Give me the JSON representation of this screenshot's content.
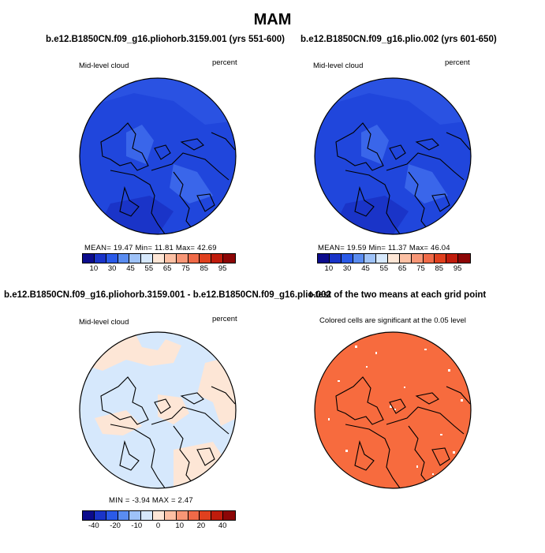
{
  "title": "MAM",
  "panels": [
    {
      "id": "p1",
      "title": "b.e12.B1850CN.f09_g16.pliohorb.3159.001 (yrs 551-600)",
      "left_label": "Mid-level cloud",
      "right_label": "percent",
      "stats": "MEAN=   19.47   Min=    11.81   Max=    42.69",
      "colorbar": {
        "colors": [
          "#0c0c8c",
          "#1a34c8",
          "#2a5ae8",
          "#5a8cf0",
          "#9ec2f8",
          "#d6e8fc",
          "#fde6d6",
          "#fcc0a4",
          "#f79676",
          "#f06a48",
          "#e0401e",
          "#c01c0c",
          "#8c0606"
        ],
        "ticks": [
          "10",
          "30",
          "45",
          "55",
          "65",
          "75",
          "85",
          "95"
        ]
      }
    },
    {
      "id": "p2",
      "title": "b.e12.B1850CN.f09_g16.plio.002 (yrs 601-650)",
      "left_label": "Mid-level cloud",
      "right_label": "percent",
      "stats": "MEAN=   19.59   Min=    11.37   Max=    46.04",
      "colorbar": {
        "colors": [
          "#0c0c8c",
          "#1a34c8",
          "#2a5ae8",
          "#5a8cf0",
          "#9ec2f8",
          "#d6e8fc",
          "#fde6d6",
          "#fcc0a4",
          "#f79676",
          "#f06a48",
          "#e0401e",
          "#c01c0c",
          "#8c0606"
        ],
        "ticks": [
          "10",
          "30",
          "45",
          "55",
          "65",
          "75",
          "85",
          "95"
        ]
      }
    },
    {
      "id": "p3",
      "title": "b.e12.B1850CN.f09_g16.pliohorb.3159.001 - b.e12.B1850CN.f09_g16.plio.002",
      "left_label": "Mid-level cloud",
      "right_label": "percent",
      "stats": "MIN =   -3.94  MAX =    2.47",
      "colorbar": {
        "colors": [
          "#0c0c8c",
          "#1a34c8",
          "#2a5ae8",
          "#5a8cf0",
          "#9ec2f8",
          "#d6e8fc",
          "#fde6d6",
          "#fcc0a4",
          "#f79676",
          "#f06a48",
          "#e0401e",
          "#c01c0c",
          "#8c0606"
        ],
        "ticks": [
          "-40",
          "-20",
          "-10",
          "0",
          "10",
          "20",
          "40"
        ]
      }
    },
    {
      "id": "p4",
      "title": "t-test of the two means at each grid point",
      "left_label": "Colored cells are significant at the 0.05 level"
    }
  ],
  "colors": {
    "cloud_base": "#2046dc",
    "cloud_light": "#3a66ea",
    "cloud_dark": "#1a34c8",
    "diff_blue": "#d6e8fc",
    "diff_peach": "#fde6d6",
    "ttest_fill": "#f76b3e"
  }
}
